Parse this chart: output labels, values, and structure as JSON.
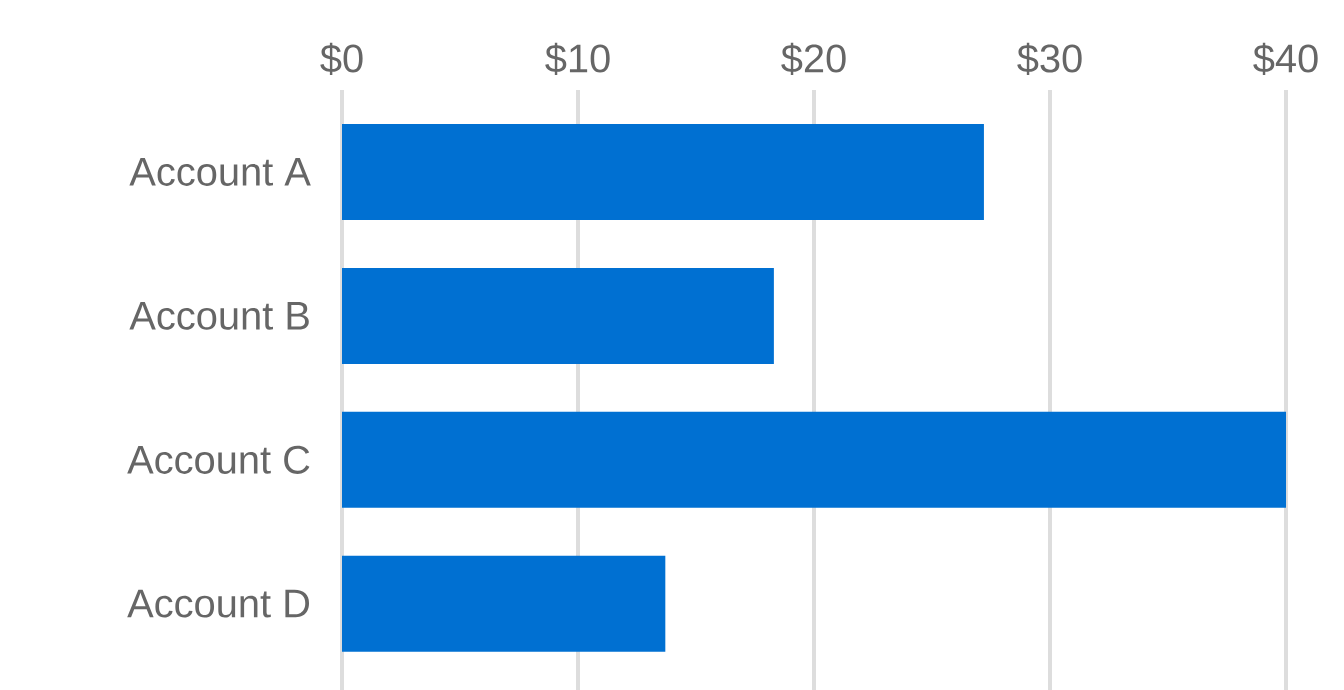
{
  "chart_data": {
    "type": "bar",
    "orientation": "horizontal",
    "categories": [
      "Account A",
      "Account B",
      "Account C",
      "Account D"
    ],
    "values": [
      27.2,
      18.3,
      40,
      13.7
    ],
    "color": "#0070d2",
    "xlim": [
      0,
      40
    ],
    "xticks": [
      {
        "value": 0,
        "label": "$0"
      },
      {
        "value": 10,
        "label": "$10"
      },
      {
        "value": 20,
        "label": "$20"
      },
      {
        "value": 30,
        "label": "$30"
      },
      {
        "value": 40,
        "label": "$40"
      }
    ],
    "grid": "x"
  }
}
